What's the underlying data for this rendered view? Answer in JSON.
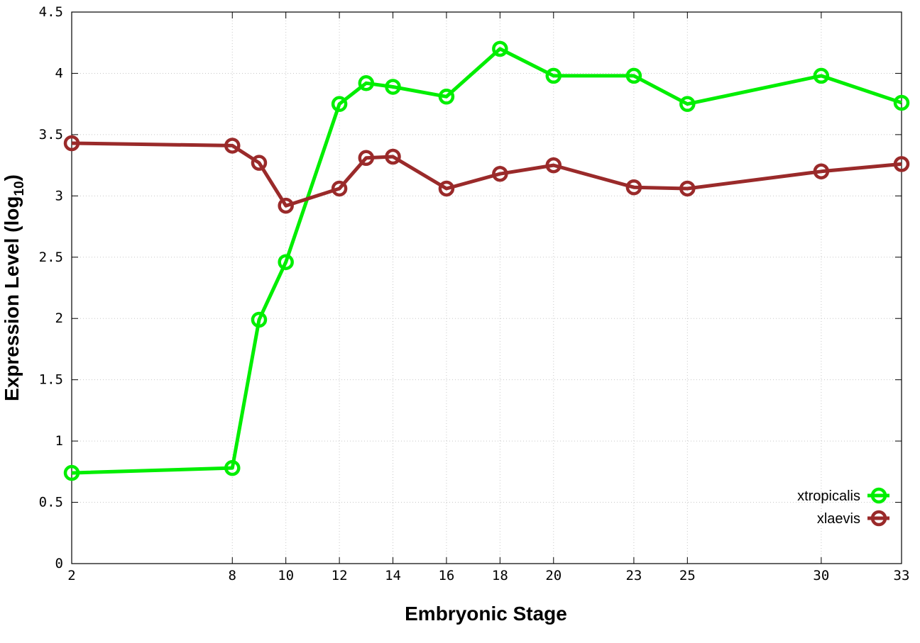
{
  "chart_data": {
    "type": "line",
    "title": "",
    "xlabel": "Embryonic Stage",
    "ylabel_main": "Expression Level (log",
    "ylabel_sub": "10",
    "ylabel_close": ")",
    "xlim": [
      2,
      33
    ],
    "ylim": [
      0,
      4.5
    ],
    "x_ticks": [
      2,
      8,
      10,
      12,
      14,
      16,
      18,
      20,
      23,
      25,
      30,
      33
    ],
    "y_ticks": [
      0,
      0.5,
      1,
      1.5,
      2,
      2.5,
      3,
      3.5,
      4,
      4.5
    ],
    "y_tick_labels": [
      "0",
      "0.5",
      "1",
      "1.5",
      "2",
      "2.5",
      "3",
      "3.5",
      "4",
      "4.5"
    ],
    "grid": true,
    "legend_position": "bottom-right",
    "series": [
      {
        "name": "xtropicalis",
        "color": "#00ee00",
        "x": [
          2,
          8,
          9,
          10,
          12,
          13,
          14,
          16,
          18,
          20,
          23,
          25,
          30,
          33
        ],
        "y": [
          0.74,
          0.78,
          1.99,
          2.46,
          3.75,
          3.92,
          3.89,
          3.81,
          4.2,
          3.98,
          3.98,
          3.75,
          3.98,
          3.76
        ]
      },
      {
        "name": "xlaevis",
        "color": "#9a2a2a",
        "x": [
          2,
          8,
          9,
          10,
          12,
          13,
          14,
          16,
          18,
          20,
          23,
          25,
          30,
          33
        ],
        "y": [
          3.43,
          3.41,
          3.27,
          2.92,
          3.06,
          3.31,
          3.32,
          3.06,
          3.18,
          3.25,
          3.07,
          3.06,
          3.2,
          3.26
        ]
      }
    ]
  }
}
